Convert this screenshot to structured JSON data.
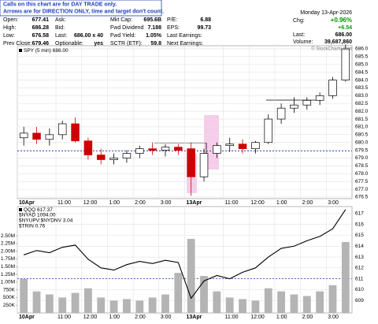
{
  "notice": [
    "Calls on this chart are for DAY TRADE only.",
    "Arrows are for DIRECTION ONLY, time and target don't count."
  ],
  "quote": {
    "rows": [
      [
        [
          "Open:",
          "677.41"
        ],
        [
          "Ask:"
        ],
        [
          "Mkt Cap:",
          "695.6B"
        ],
        [
          "P/E:",
          "6.88"
        ]
      ],
      [
        [
          "High:",
          "686.28"
        ],
        [
          "Bid:"
        ],
        [
          "Fwd Dividend",
          "7.188"
        ],
        [
          "EPS:",
          "99.73"
        ]
      ],
      [
        [
          "Low:",
          "676.58"
        ],
        [
          "Last:",
          "686.00 x 40"
        ],
        [
          "Fwd Yield:",
          "1.05%"
        ],
        [
          "Last Earnings:"
        ]
      ],
      [
        [
          "Prev Close:",
          "679.46"
        ],
        [
          "Optionable:",
          "yes"
        ],
        [
          "SCTR (ETF):",
          "59.8"
        ],
        [
          "Next Earnings:"
        ]
      ]
    ],
    "date": "Monday 13-Apr-2026",
    "chg_label": "Chg:",
    "chg_pct": "+0.96%",
    "chg": "+6.54",
    "last_label": "Last:",
    "last": "686.00",
    "volume_label": "Volume:",
    "volume": "39,687,860"
  },
  "copyright": "© StockCharts.com",
  "chart_data": [
    {
      "type": "candlestick",
      "legend": "SPY (5 min) 686.00",
      "x": [
        0,
        6,
        12,
        18,
        24,
        30,
        36,
        42,
        48,
        54,
        60,
        66,
        72,
        78,
        84,
        90,
        96,
        102,
        108,
        114,
        120,
        126,
        132,
        138,
        144,
        150
      ],
      "open": [
        680.3,
        680.6,
        680.2,
        680.5,
        681.2,
        680.1,
        679.2,
        678.9,
        679.0,
        679.3,
        679.6,
        679.5,
        679.7,
        679.6,
        677.8,
        679.3,
        679.8,
        679.9,
        679.6,
        680.0,
        681.5,
        682.2,
        682.4,
        682.7,
        683.0,
        684.0
      ],
      "high": [
        681.0,
        681.0,
        680.9,
        681.4,
        681.6,
        680.3,
        679.6,
        679.3,
        679.5,
        679.8,
        680.0,
        679.9,
        679.9,
        680.0,
        679.6,
        680.0,
        680.3,
        680.2,
        680.1,
        681.8,
        682.5,
        682.9,
        682.9,
        683.2,
        684.2,
        686.28
      ],
      "low": [
        679.8,
        679.9,
        679.8,
        680.2,
        680.0,
        678.9,
        678.6,
        678.6,
        678.7,
        679.0,
        679.2,
        679.1,
        679.2,
        676.58,
        677.5,
        679.0,
        679.4,
        679.3,
        679.3,
        679.9,
        681.2,
        681.9,
        682.1,
        682.4,
        682.8,
        683.9
      ],
      "close": [
        680.6,
        680.2,
        680.5,
        681.2,
        680.1,
        679.2,
        678.9,
        679.0,
        679.3,
        679.6,
        679.5,
        679.7,
        679.5,
        677.8,
        679.3,
        679.8,
        679.9,
        679.6,
        680.0,
        681.5,
        682.2,
        682.4,
        682.7,
        683.0,
        684.0,
        686.0
      ],
      "up_color": "#000000",
      "down_color": "#cc0000",
      "reference_line": 679.46,
      "reference_color": "#1f3fbf",
      "xlim": [
        0,
        156
      ],
      "xticks": [
        {
          "value": 0,
          "label": "10Apr"
        },
        {
          "value": 18,
          "label": "11:00"
        },
        {
          "value": 30,
          "label": "12:00"
        },
        {
          "value": 42,
          "label": "1:00"
        },
        {
          "value": 54,
          "label": "2:00"
        },
        {
          "value": 66,
          "label": "3:00"
        },
        {
          "value": 78,
          "label": "13Apr"
        },
        {
          "value": 96,
          "label": "11:00"
        },
        {
          "value": 108,
          "label": "12:00"
        },
        {
          "value": 120,
          "label": "1:00"
        },
        {
          "value": 132,
          "label": "2:00"
        },
        {
          "value": 144,
          "label": "3:00"
        }
      ],
      "ylim": [
        676.4,
        686.2
      ],
      "yticks": [
        676.5,
        {
          "value": 677,
          "label": "677.0"
        },
        677.5,
        {
          "value": 678,
          "label": "678.0"
        },
        678.5,
        {
          "value": 679,
          "label": "679.0"
        },
        679.5,
        {
          "value": 680,
          "label": "680.0"
        },
        680.5,
        {
          "value": 681,
          "label": "681.0"
        },
        681.5,
        {
          "value": 682,
          "label": "682.0"
        },
        682.5,
        {
          "value": 683,
          "label": "683.0"
        },
        683.5,
        {
          "value": 684,
          "label": "684.0"
        },
        684.5,
        {
          "value": 685,
          "label": "685.0"
        },
        685.5,
        {
          "value": 686,
          "label": "686.0"
        }
      ],
      "grid": true
    },
    {
      "type": "line",
      "legend_extra": [
        "$NYAD 1094.00",
        "$NYUPV:$NYDNV 3.04",
        "$TRIN 0.76"
      ],
      "x": [
        0,
        6,
        12,
        18,
        24,
        30,
        36,
        42,
        48,
        54,
        60,
        66,
        72,
        78,
        84,
        90,
        96,
        102,
        108,
        114,
        120,
        126,
        132,
        138,
        144,
        150
      ],
      "series": [
        {
          "name": "QQQ 617.37",
          "color": "#000000",
          "values": [
            613.2,
            613.6,
            613.4,
            613.9,
            614.1,
            612.8,
            612.0,
            611.8,
            612.3,
            612.6,
            612.4,
            612.7,
            612.5,
            609.2,
            610.8,
            611.3,
            611.0,
            611.6,
            612.0,
            613.0,
            613.8,
            614.0,
            614.5,
            614.9,
            615.6,
            617.37
          ]
        },
        {
          "name": "Volume",
          "color": "#b4b4b4",
          "axis": "y2",
          "values": [
            1100000,
            700000,
            600000,
            500000,
            650000,
            800000,
            500000,
            400000,
            450000,
            400000,
            500000,
            600000,
            1300000,
            2400000,
            1200000,
            700000,
            500000,
            450000,
            400000,
            800000,
            700000,
            600000,
            550000,
            700000,
            900000,
            2300000
          ]
        }
      ],
      "reference_line": 611.0,
      "reference_color": "#1f3fbf",
      "xlim": [
        0,
        156
      ],
      "xticks": [
        {
          "value": 0,
          "label": "10Apr"
        },
        {
          "value": 18,
          "label": "11:00"
        },
        {
          "value": 30,
          "label": "12:00"
        },
        {
          "value": 42,
          "label": "1:00"
        },
        {
          "value": 54,
          "label": "2:00"
        },
        {
          "value": 66,
          "label": "3:00"
        },
        {
          "value": 78,
          "label": "13Apr"
        },
        {
          "value": 96,
          "label": "11:00"
        },
        {
          "value": 108,
          "label": "12:00"
        },
        {
          "value": 120,
          "label": "1:00"
        },
        {
          "value": 132,
          "label": "2:00"
        },
        {
          "value": 144,
          "label": "3:00"
        }
      ],
      "ylim": [
        607.85,
        617.65
      ],
      "yticks": [
        609,
        610,
        611,
        612,
        613,
        614,
        615,
        616,
        617
      ],
      "y2lim": [
        0,
        3450000
      ],
      "y2ticks": [
        {
          "value": 250000,
          "label": "250K"
        },
        {
          "value": 500000,
          "label": "500K"
        },
        {
          "value": 750000,
          "label": "750K"
        },
        {
          "value": 1000000,
          "label": "1.00M"
        },
        {
          "value": 1250000,
          "label": "1.25M"
        },
        {
          "value": 1500000,
          "label": "1.50M"
        },
        {
          "value": 1750000,
          "label": "1.75M"
        },
        {
          "value": 2000000,
          "label": "2.00M"
        },
        {
          "value": 2250000,
          "label": "2.25M"
        },
        {
          "value": 2500000,
          "label": "2.50M"
        }
      ],
      "grid": true
    }
  ]
}
